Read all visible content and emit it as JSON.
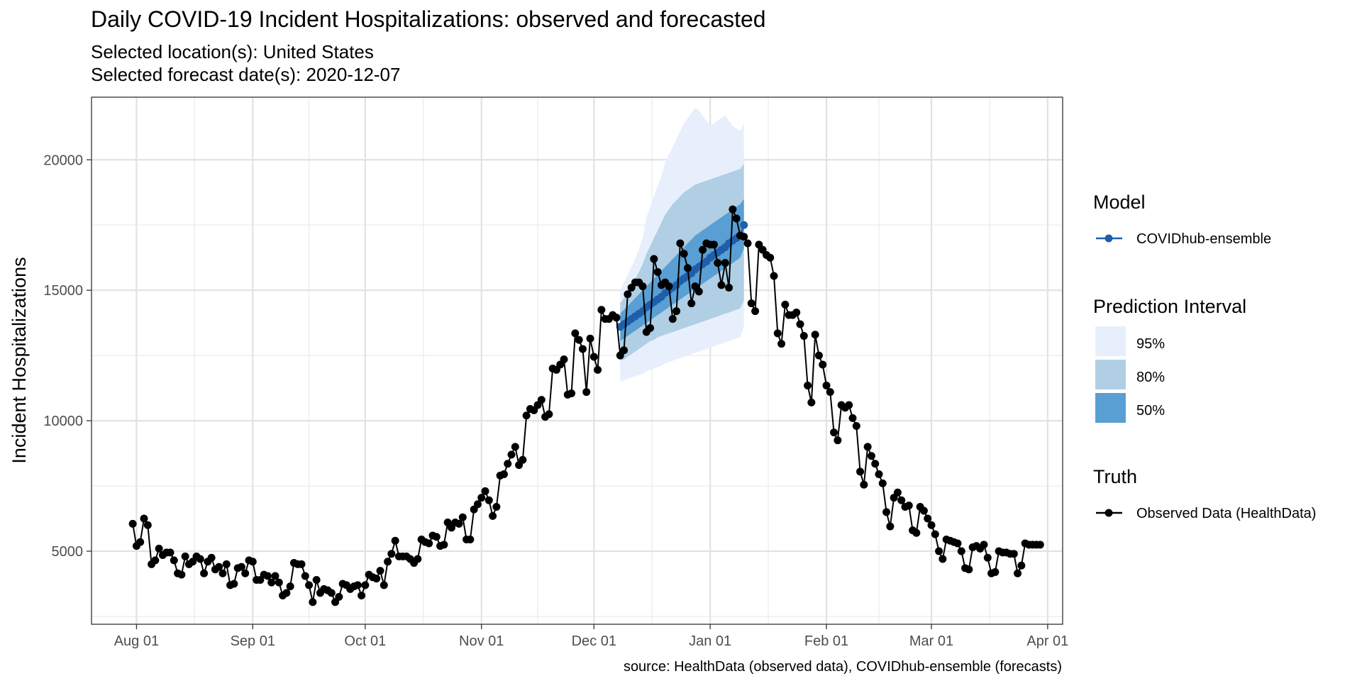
{
  "chart_data": {
    "type": "line",
    "title": "Daily COVID-19 Incident Hospitalizations: observed and forecasted",
    "subtitle_lines": [
      "Selected location(s): United States",
      "Selected forecast date(s): 2020-12-07"
    ],
    "xlabel": "",
    "ylabel": "Incident Hospitalizations",
    "caption": "source: HealthData (observed data), COVIDhub-ensemble (forecasts)",
    "x_range": [
      "2020-07-20",
      "2021-04-05"
    ],
    "y_range": [
      2200,
      22400
    ],
    "x_ticks": [
      {
        "date": "2020-08-01",
        "label": "Aug 01"
      },
      {
        "date": "2020-09-01",
        "label": "Sep 01"
      },
      {
        "date": "2020-10-01",
        "label": "Oct 01"
      },
      {
        "date": "2020-11-01",
        "label": "Nov 01"
      },
      {
        "date": "2020-12-01",
        "label": "Dec 01"
      },
      {
        "date": "2021-01-01",
        "label": "Jan 01"
      },
      {
        "date": "2021-02-01",
        "label": "Feb 01"
      },
      {
        "date": "2021-03-01",
        "label": "Mar 01"
      },
      {
        "date": "2021-04-01",
        "label": "Apr 01"
      }
    ],
    "y_ticks": [
      5000,
      10000,
      15000,
      20000
    ],
    "grid": true,
    "series": [
      {
        "name": "Observed Data (HealthData)",
        "color": "#000000",
        "start_date": "2020-07-31",
        "values": [
          6050,
          5200,
          5350,
          6250,
          6000,
          4500,
          4650,
          5100,
          4850,
          4950,
          4950,
          4650,
          4150,
          4100,
          4800,
          4500,
          4600,
          4800,
          4700,
          4150,
          4600,
          4750,
          4300,
          4400,
          4150,
          4500,
          3700,
          3750,
          4350,
          4400,
          4150,
          4650,
          4600,
          3900,
          3900,
          4100,
          4050,
          3800,
          4050,
          3800,
          3300,
          3400,
          3650,
          4550,
          4500,
          4500,
          4050,
          3700,
          3050,
          3900,
          3400,
          3550,
          3500,
          3400,
          3050,
          3250,
          3750,
          3700,
          3550,
          3650,
          3700,
          3300,
          3700,
          4100,
          4000,
          3950,
          4250,
          3700,
          4600,
          4900,
          5400,
          4800,
          4800,
          4800,
          4700,
          4550,
          4700,
          5450,
          5350,
          5300,
          5600,
          5550,
          5200,
          5250,
          6100,
          5900,
          6100,
          6050,
          6300,
          5450,
          5450,
          6600,
          6800,
          7050,
          7300,
          6950,
          6350,
          6700,
          7900,
          7950,
          8350,
          8700,
          9000,
          8300,
          8500,
          10200,
          10450,
          10400,
          10600,
          10800,
          10150,
          10250,
          12000,
          11950,
          12150,
          12350,
          11000,
          11050,
          13350,
          13100,
          12750,
          11100,
          13150,
          12450,
          11950,
          14250,
          13900,
          13900,
          14050,
          13950,
          12500,
          12700,
          14850,
          15100,
          15300,
          15300,
          15150,
          13400,
          13550,
          16200,
          15700,
          15200,
          15300,
          15150,
          13900,
          14200,
          16800,
          16400,
          15850,
          14500,
          15150,
          14950,
          16550,
          16800,
          16750,
          16750,
          16050,
          15200,
          16050,
          15100,
          18100,
          17750,
          17100,
          17050,
          16800,
          14500,
          14200,
          16750,
          16550,
          16350,
          16250,
          15550,
          13350,
          12950,
          14450,
          14050,
          14050,
          14150,
          13700,
          13250,
          11350,
          10700,
          13300,
          12500,
          12150,
          11350,
          11100,
          9550,
          9250,
          10600,
          10500,
          10600,
          10100,
          9800,
          8050,
          7550,
          9000,
          8650,
          8350,
          7950,
          7600,
          6500,
          5950,
          7050,
          7250,
          6950,
          6700,
          6750,
          5800,
          5700,
          6700,
          6550,
          6250,
          6000,
          5650,
          5000,
          4700,
          5450,
          5400,
          5350,
          5300,
          5000,
          4350,
          4300,
          5150,
          5200,
          5100,
          5250,
          4750,
          4150,
          4200,
          5000,
          4950,
          4950,
          4900,
          4900,
          4150,
          4450,
          5300,
          5250,
          5250,
          5250,
          5250
        ]
      },
      {
        "name": "COVIDhub-ensemble",
        "color": "#1f5fa9",
        "start_date": "2020-12-08",
        "median": [
          13600,
          13700,
          13800,
          13900,
          14000,
          14100,
          14200,
          14350,
          14450,
          14550,
          14650,
          14750,
          14900,
          15000,
          15100,
          15200,
          15350,
          15450,
          15550,
          15650,
          15800,
          15900,
          16000,
          16100,
          16250,
          16350,
          16450,
          16550,
          16650,
          16800,
          16900,
          17000,
          17100,
          17500
        ]
      }
    ],
    "intervals": [
      {
        "level": "95%",
        "color": "#e8effc",
        "lower": [
          11500,
          11550,
          11600,
          11650,
          11700,
          11750,
          11800,
          11900,
          11950,
          12000,
          12050,
          12100,
          12200,
          12250,
          12300,
          12350,
          12400,
          12450,
          12500,
          12550,
          12600,
          12650,
          12700,
          12750,
          12800,
          12850,
          12900,
          12950,
          13000,
          13050,
          13100,
          13150,
          13200,
          13600
        ],
        "upper": [
          15000,
          15300,
          15600,
          15900,
          16200,
          16600,
          17000,
          17800,
          18200,
          18600,
          19000,
          19400,
          19900,
          20200,
          20500,
          20800,
          21100,
          21400,
          21600,
          21800,
          22000,
          21900,
          21700,
          21500,
          21300,
          21400,
          21500,
          21600,
          21700,
          21500,
          21300,
          21200,
          21100,
          21400
        ]
      },
      {
        "level": "80%",
        "color": "#b0cfe4",
        "lower": [
          12300,
          12350,
          12450,
          12550,
          12650,
          12750,
          12850,
          12950,
          13050,
          13100,
          13200,
          13250,
          13300,
          13350,
          13400,
          13450,
          13500,
          13550,
          13600,
          13650,
          13700,
          13750,
          13800,
          13850,
          13900,
          13950,
          14000,
          14050,
          14100,
          14150,
          14200,
          14250,
          14300,
          14600
        ],
        "upper": [
          14500,
          14700,
          14950,
          15200,
          15450,
          15700,
          16000,
          16400,
          16700,
          17000,
          17300,
          17600,
          17900,
          18100,
          18300,
          18450,
          18600,
          18750,
          18850,
          18950,
          19050,
          19100,
          19150,
          19200,
          19250,
          19300,
          19350,
          19400,
          19450,
          19500,
          19550,
          19600,
          19650,
          19850
        ]
      },
      {
        "level": "50%",
        "color": "#5a9fd3",
        "lower": [
          13050,
          13150,
          13250,
          13350,
          13450,
          13550,
          13650,
          13750,
          13850,
          13950,
          14050,
          14150,
          14250,
          14350,
          14450,
          14550,
          14650,
          14750,
          14850,
          14950,
          15050,
          15150,
          15250,
          15350,
          15450,
          15550,
          15650,
          15750,
          15850,
          15950,
          16050,
          16150,
          16250,
          16600
        ],
        "upper": [
          14100,
          14250,
          14400,
          14550,
          14700,
          14850,
          15000,
          15150,
          15300,
          15450,
          15600,
          15750,
          15900,
          16050,
          16200,
          16350,
          16500,
          16650,
          16800,
          16950,
          17100,
          17200,
          17300,
          17400,
          17500,
          17600,
          17700,
          17800,
          17900,
          18000,
          18100,
          18200,
          18300,
          18500
        ]
      }
    ],
    "legend": {
      "position": "right",
      "model_title": "Model",
      "model_items": [
        "COVIDhub-ensemble"
      ],
      "interval_title": "Prediction Interval",
      "interval_items": [
        "95%",
        "80%",
        "50%"
      ],
      "truth_title": "Truth",
      "truth_items": [
        "Observed Data (HealthData)"
      ]
    }
  }
}
